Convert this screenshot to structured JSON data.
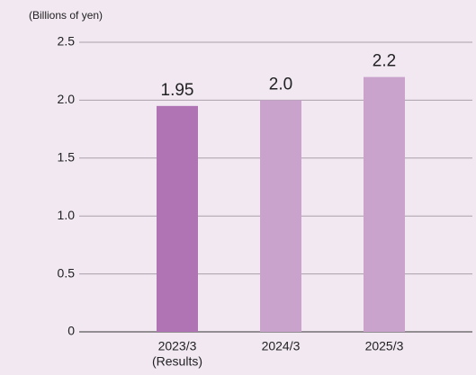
{
  "chart_data": {
    "type": "bar",
    "y_unit_label": "(Billions of yen)",
    "categories": [
      "2023/3",
      "2024/3",
      "2025/3"
    ],
    "category_notes": [
      "(Results)",
      null,
      null
    ],
    "values": [
      1.95,
      2.0,
      2.2
    ],
    "value_labels": [
      "1.95",
      "2.0",
      "2.2"
    ],
    "colors": [
      "#b073b3",
      "#c9a3cc",
      "#c9a3cc"
    ],
    "ylim": [
      0,
      2.5
    ],
    "yticks": [
      0,
      0.5,
      {
        "value": 1.0,
        "label": "1.0"
      },
      1.5,
      {
        "value": 2.0,
        "label": "2.0"
      },
      2.5
    ],
    "grid": true
  }
}
